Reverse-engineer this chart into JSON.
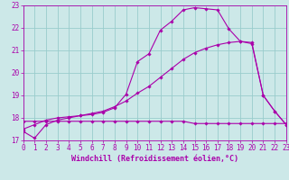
{
  "title": "",
  "xlabel": "Windchill (Refroidissement éolien,°C)",
  "bg_color": "#cce8e8",
  "line_color": "#aa00aa",
  "grid_color": "#99cccc",
  "x_min": 0,
  "x_max": 23,
  "y_min": 17,
  "y_max": 23,
  "line1_x": [
    0,
    1,
    2,
    3,
    4,
    5,
    6,
    7,
    8,
    9,
    10,
    11,
    12,
    13,
    14,
    15,
    16,
    17,
    18,
    19,
    20,
    21,
    22,
    23
  ],
  "line1_y": [
    17.4,
    17.1,
    17.7,
    17.9,
    18.0,
    18.1,
    18.15,
    18.25,
    18.45,
    19.05,
    20.5,
    20.85,
    21.9,
    22.3,
    22.8,
    22.9,
    22.85,
    22.8,
    21.95,
    21.4,
    21.3,
    19.0,
    18.3,
    17.7
  ],
  "line2_x": [
    0,
    1,
    2,
    3,
    4,
    5,
    6,
    7,
    8,
    9,
    10,
    11,
    12,
    13,
    14,
    15,
    16,
    17,
    18,
    19,
    20,
    21,
    22,
    23
  ],
  "line2_y": [
    17.5,
    17.7,
    17.9,
    18.0,
    18.05,
    18.1,
    18.2,
    18.3,
    18.5,
    18.75,
    19.1,
    19.4,
    19.8,
    20.2,
    20.6,
    20.9,
    21.1,
    21.25,
    21.35,
    21.4,
    21.35,
    19.0,
    18.3,
    17.7
  ],
  "line3_x": [
    0,
    1,
    2,
    3,
    4,
    5,
    6,
    7,
    8,
    9,
    10,
    11,
    12,
    13,
    14,
    15,
    16,
    17,
    18,
    19,
    20,
    21,
    22,
    23
  ],
  "line3_y": [
    17.85,
    17.85,
    17.85,
    17.85,
    17.85,
    17.85,
    17.85,
    17.85,
    17.85,
    17.85,
    17.85,
    17.85,
    17.85,
    17.85,
    17.85,
    17.75,
    17.75,
    17.75,
    17.75,
    17.75,
    17.75,
    17.75,
    17.75,
    17.75
  ],
  "x_ticks": [
    0,
    1,
    2,
    3,
    4,
    5,
    6,
    7,
    8,
    9,
    10,
    11,
    12,
    13,
    14,
    15,
    16,
    17,
    18,
    19,
    20,
    21,
    22,
    23
  ],
  "y_ticks": [
    17,
    18,
    19,
    20,
    21,
    22,
    23
  ],
  "tick_fontsize": 5.5,
  "xlabel_fontsize": 6.0,
  "marker": "D",
  "markersize": 1.8,
  "linewidth": 0.8
}
